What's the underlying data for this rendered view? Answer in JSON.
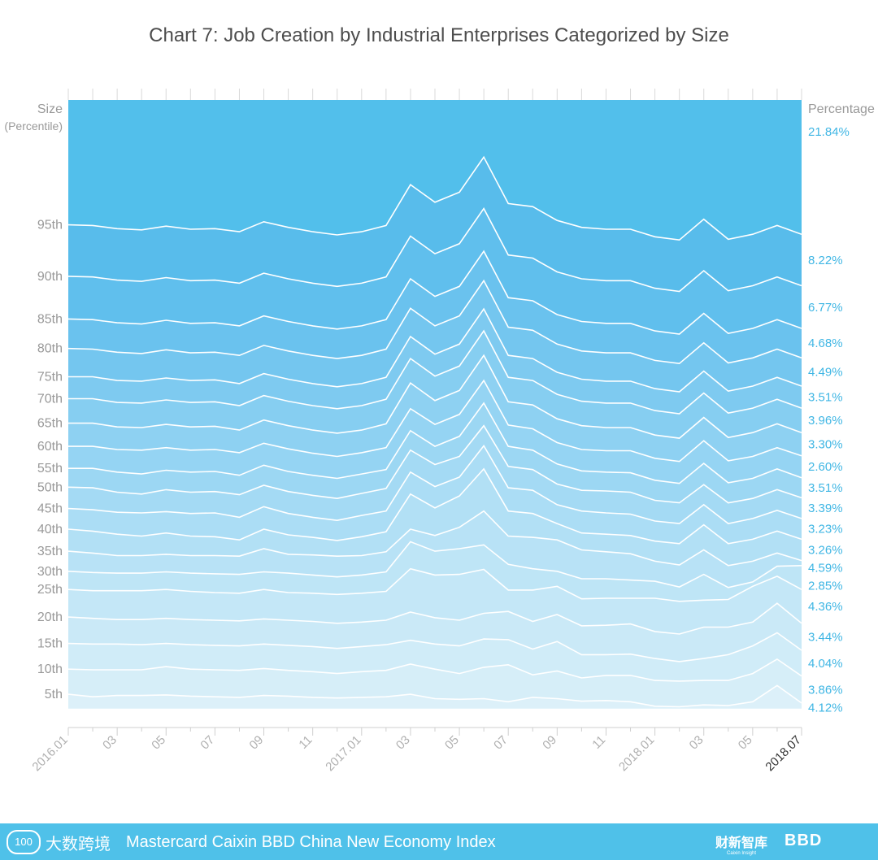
{
  "chart_data": {
    "type": "area",
    "title": "Chart 7: Job Creation by Industrial Enterprises Categorized by Size",
    "ylabel_left": [
      "Size",
      "(Percentile)"
    ],
    "ylabel_right": "Percentage",
    "x": [
      "2016.01",
      "2016.02",
      "2016.03",
      "2016.04",
      "2016.05",
      "2016.06",
      "2016.07",
      "2016.08",
      "2016.09",
      "2016.10",
      "2016.11",
      "2016.12",
      "2017.01",
      "2017.02",
      "2017.03",
      "2017.04",
      "2017.05",
      "2017.06",
      "2017.07",
      "2017.08",
      "2017.09",
      "2017.10",
      "2017.11",
      "2017.12",
      "2018.01",
      "2018.02",
      "2018.03",
      "2018.04",
      "2018.05",
      "2018.06",
      "2018.07"
    ],
    "x_tick_labels": [
      "2016.01",
      "03",
      "05",
      "07",
      "09",
      "11",
      "2017.01",
      "03",
      "05",
      "07",
      "09",
      "11",
      "2018.01",
      "03",
      "05",
      "2018.07"
    ],
    "size_percentiles": [
      "5th",
      "10th",
      "15th",
      "20th",
      "25th",
      "30th",
      "35th",
      "40th",
      "45th",
      "50th",
      "55th",
      "60th",
      "65th",
      "70th",
      "75th",
      "80th",
      "85th",
      "90th",
      "95th"
    ],
    "band_percentages": [
      "4.12%",
      "3.86%",
      "4.04%",
      "3.44%",
      "4.36%",
      "2.85%",
      "4.59%",
      "3.26%",
      "3.23%",
      "3.39%",
      "3.51%",
      "2.60%",
      "3.30%",
      "3.96%",
      "3.51%",
      "4.49%",
      "4.68%",
      "6.77%",
      "8.22%",
      "21.84%"
    ],
    "colors": [
      "#dcf0f9",
      "#d6eef8",
      "#d0ecf8",
      "#cae9f7",
      "#c4e7f7",
      "#beE5f6",
      "#b8e2f6",
      "#b2e0f5",
      "#abddf5",
      "#a4daf4",
      "#9cd7f3",
      "#95d4f3",
      "#8ed1f2",
      "#86cef1",
      "#7ecaf0",
      "#74c6ef",
      "#6ac2ee",
      "#60bfed",
      "#58bceb",
      "#52bfeb"
    ],
    "bottom_pct": 3.0,
    "series": [
      {
        "values": [
          5.3,
          4.9,
          5.1,
          5.1,
          5.2,
          5.0,
          4.9,
          4.8,
          5.1,
          5.0,
          4.8,
          4.7,
          4.8,
          4.9,
          5.3,
          4.6,
          4.5,
          4.6,
          4.1,
          4.8,
          4.6,
          4.2,
          4.3,
          4.1,
          3.4,
          3.3,
          3.6,
          3.5,
          4.1,
          6.7,
          3.9
        ]
      },
      {
        "values": [
          9.3,
          9.2,
          9.2,
          9.2,
          9.7,
          9.3,
          9.2,
          9.1,
          9.4,
          9.1,
          8.9,
          8.6,
          8.9,
          9.1,
          10.1,
          9.3,
          8.6,
          9.6,
          10.0,
          8.4,
          9.0,
          7.9,
          8.3,
          8.3,
          7.5,
          7.4,
          7.5,
          7.5,
          8.6,
          10.9,
          8.2
        ]
      },
      {
        "values": [
          13.4,
          13.3,
          13.3,
          13.2,
          13.4,
          13.2,
          13.1,
          13.0,
          13.3,
          13.1,
          12.9,
          12.6,
          12.9,
          13.2,
          13.9,
          13.3,
          13.0,
          14.1,
          14.0,
          12.5,
          13.7,
          11.6,
          11.6,
          11.7,
          11.0,
          10.5,
          11.0,
          11.6,
          13.0,
          15.1,
          12.3
        ]
      },
      {
        "values": [
          17.6,
          17.4,
          17.2,
          17.2,
          17.4,
          17.2,
          17.1,
          17.0,
          17.3,
          17.1,
          16.9,
          16.6,
          16.8,
          17.1,
          18.4,
          17.5,
          17.1,
          18.2,
          18.5,
          16.9,
          18.0,
          16.2,
          16.3,
          16.5,
          15.3,
          14.9,
          16.0,
          16.0,
          16.8,
          19.8,
          16.6
        ]
      },
      {
        "values": [
          22.0,
          21.8,
          21.8,
          21.8,
          22.0,
          21.7,
          21.5,
          21.4,
          22.0,
          21.5,
          21.4,
          21.2,
          21.4,
          21.7,
          25.3,
          24.3,
          24.4,
          25.2,
          21.9,
          21.9,
          22.5,
          20.5,
          20.6,
          20.6,
          20.6,
          20.1,
          20.3,
          20.4,
          22.5,
          24.1,
          22.0
        ]
      },
      {
        "values": [
          24.9,
          24.7,
          24.6,
          24.6,
          24.8,
          24.6,
          24.5,
          24.4,
          24.8,
          24.6,
          24.3,
          24.0,
          24.3,
          24.8,
          29.6,
          28.1,
          28.5,
          29.1,
          26.0,
          25.3,
          24.9,
          23.7,
          23.7,
          23.5,
          23.3,
          22.4,
          24.4,
          22.3,
          23.2,
          25.7,
          25.8
        ]
      },
      {
        "values": [
          28.1,
          27.8,
          27.4,
          27.4,
          27.6,
          27.4,
          27.4,
          27.3,
          28.5,
          27.6,
          27.5,
          27.3,
          27.4,
          28.0,
          31.6,
          30.6,
          31.9,
          34.5,
          30.5,
          30.3,
          29.9,
          28.3,
          28.0,
          27.7,
          26.5,
          25.9,
          28.3,
          25.8,
          26.5,
          27.8,
          26.6
        ]
      },
      {
        "values": [
          31.6,
          31.3,
          30.8,
          30.5,
          31.0,
          30.5,
          30.4,
          29.9,
          31.6,
          30.7,
          30.3,
          29.8,
          30.4,
          31.2,
          37.2,
          35.0,
          36.9,
          41.2,
          34.5,
          34.1,
          32.5,
          31.0,
          30.8,
          30.6,
          29.7,
          29.3,
          32.3,
          29.3,
          30.0,
          31.3,
          30.0
        ]
      },
      {
        "values": [
          34.9,
          34.7,
          34.3,
          34.2,
          34.4,
          34.1,
          34.2,
          33.5,
          35.2,
          34.1,
          33.5,
          33.0,
          33.8,
          34.5,
          40.7,
          38.4,
          39.9,
          44.9,
          38.2,
          37.8,
          35.5,
          34.5,
          34.2,
          34.0,
          32.9,
          32.5,
          35.5,
          32.5,
          33.3,
          34.6,
          33.3
        ]
      },
      {
        "values": [
          38.3,
          38.2,
          37.5,
          37.2,
          37.9,
          37.5,
          37.6,
          37.1,
          38.6,
          37.6,
          37.0,
          36.5,
          37.3,
          38.1,
          44.2,
          41.9,
          43.2,
          48.1,
          41.6,
          41.1,
          38.8,
          37.8,
          37.7,
          37.5,
          36.2,
          35.8,
          38.7,
          35.8,
          36.5,
          37.9,
          36.6
        ]
      },
      {
        "values": [
          41.3,
          41.3,
          40.7,
          40.4,
          41.0,
          40.7,
          40.8,
          40.2,
          41.8,
          40.8,
          40.2,
          39.7,
          40.4,
          41.1,
          47.3,
          44.8,
          46.4,
          51.7,
          44.8,
          44.2,
          42.0,
          40.9,
          40.7,
          40.6,
          39.4,
          38.9,
          42.1,
          39.0,
          39.7,
          41.2,
          39.8
        ]
      },
      {
        "values": [
          44.8,
          44.8,
          44.3,
          44.2,
          44.6,
          44.2,
          44.3,
          43.8,
          45.3,
          44.4,
          43.7,
          43.2,
          43.8,
          44.6,
          50.8,
          48.3,
          49.9,
          55.3,
          48.2,
          47.6,
          45.4,
          44.3,
          44.1,
          44.1,
          42.9,
          42.4,
          45.7,
          42.5,
          43.2,
          44.6,
          43.3
        ]
      },
      {
        "values": [
          48.5,
          48.5,
          47.9,
          47.8,
          48.3,
          47.9,
          48.0,
          47.4,
          49.0,
          48.1,
          47.4,
          46.9,
          47.4,
          48.4,
          54.9,
          52.1,
          53.7,
          59.3,
          51.9,
          51.4,
          49.2,
          48.1,
          47.8,
          47.8,
          46.6,
          46.1,
          49.4,
          46.2,
          47.0,
          48.4,
          47.0
        ]
      },
      {
        "values": [
          52.4,
          52.4,
          51.8,
          51.7,
          52.2,
          51.8,
          51.9,
          51.3,
          52.9,
          52.0,
          51.3,
          50.8,
          51.3,
          52.3,
          58.8,
          56.0,
          57.6,
          63.2,
          55.8,
          55.3,
          53.1,
          52.0,
          51.7,
          51.7,
          50.5,
          50.0,
          53.3,
          50.1,
          50.9,
          52.3,
          50.9
        ]
      },
      {
        "values": [
          55.9,
          55.9,
          55.3,
          55.2,
          55.7,
          55.3,
          55.4,
          54.8,
          56.4,
          55.5,
          54.8,
          54.3,
          54.8,
          55.8,
          62.3,
          59.5,
          61.1,
          66.7,
          59.3,
          58.8,
          56.6,
          55.5,
          55.2,
          55.2,
          54.0,
          53.5,
          56.8,
          53.6,
          54.4,
          55.8,
          54.4
        ]
      },
      {
        "values": [
          60.4,
          60.3,
          59.8,
          59.6,
          60.2,
          59.7,
          59.8,
          59.3,
          60.9,
          60.0,
          59.3,
          58.8,
          59.3,
          60.3,
          66.8,
          64.0,
          65.6,
          71.2,
          63.8,
          63.3,
          61.1,
          60.0,
          59.7,
          59.7,
          58.5,
          58.0,
          61.3,
          58.1,
          58.9,
          60.3,
          58.9
        ]
      },
      {
        "values": [
          65.1,
          65.0,
          64.5,
          64.3,
          64.9,
          64.4,
          64.5,
          64.0,
          65.6,
          64.7,
          64.0,
          63.5,
          64.0,
          65.0,
          71.5,
          68.7,
          70.3,
          75.9,
          68.5,
          68.0,
          65.8,
          64.7,
          64.4,
          64.4,
          63.2,
          62.7,
          66.0,
          62.8,
          63.6,
          65.0,
          63.6
        ]
      },
      {
        "values": [
          71.9,
          71.8,
          71.3,
          71.1,
          71.7,
          71.2,
          71.3,
          70.8,
          72.4,
          71.5,
          70.8,
          70.3,
          70.8,
          71.8,
          78.3,
          75.5,
          77.1,
          82.7,
          75.3,
          74.8,
          72.6,
          71.5,
          71.2,
          71.2,
          70.0,
          69.5,
          72.8,
          69.6,
          70.4,
          71.8,
          70.4
        ]
      },
      {
        "values": [
          80.1,
          80.0,
          79.5,
          79.3,
          79.9,
          79.4,
          79.5,
          79.0,
          80.6,
          79.7,
          79.0,
          78.5,
          79.0,
          80.0,
          86.5,
          83.7,
          85.3,
          90.9,
          83.5,
          83.0,
          80.8,
          79.7,
          79.4,
          79.4,
          78.2,
          77.7,
          81.0,
          77.8,
          78.6,
          80.0,
          78.6
        ]
      }
    ]
  },
  "footer": {
    "logo_left_mark": "100",
    "logo_left_text": "大数跨境",
    "title": "Mastercard Caixin BBD China New Economy Index",
    "logo_mid": "财新智库",
    "logo_mid_sub": "Caixin Insight",
    "logo_right": "BBD"
  }
}
